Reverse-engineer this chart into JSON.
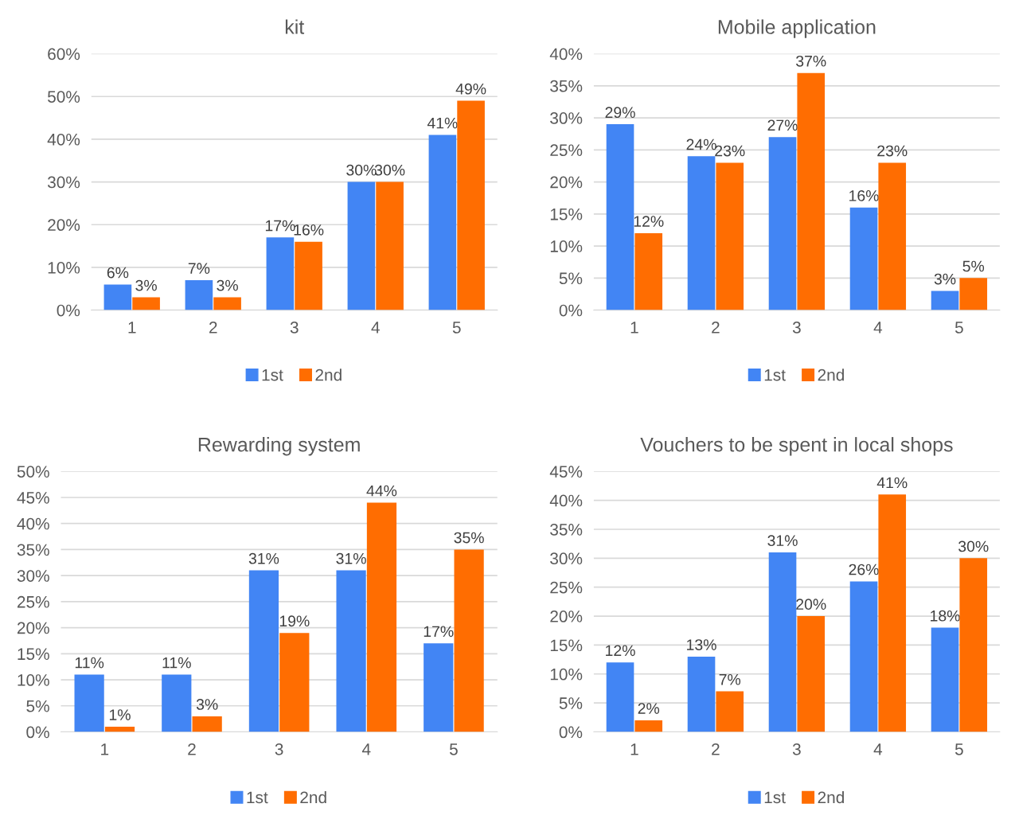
{
  "chart_data": [
    {
      "type": "bar",
      "title": "kit",
      "categories": [
        "1",
        "2",
        "3",
        "4",
        "5"
      ],
      "series": [
        {
          "name": "1st",
          "color": "#4285f4",
          "values": [
            6,
            7,
            17,
            30,
            41
          ],
          "value_labels": [
            "6%",
            "7%",
            "17%",
            "30%",
            "41%"
          ]
        },
        {
          "name": "2nd",
          "color": "#ff6d01",
          "values": [
            3,
            3,
            16,
            30,
            49
          ],
          "value_labels": [
            "3%",
            "3%",
            "16%",
            "30%",
            "49%"
          ]
        }
      ],
      "ylim": [
        0,
        60
      ],
      "yticks": [
        {
          "value": 0,
          "label": "0%"
        },
        {
          "value": 10,
          "label": "10%"
        },
        {
          "value": 20,
          "label": "20%"
        },
        {
          "value": 30,
          "label": "30%"
        },
        {
          "value": 40,
          "label": "40%"
        },
        {
          "value": 50,
          "label": "50%"
        },
        {
          "value": 60,
          "label": "60%"
        }
      ],
      "grid": "y",
      "legend": "bottom"
    },
    {
      "type": "bar",
      "title": "Mobile application",
      "categories": [
        "1",
        "2",
        "3",
        "4",
        "5"
      ],
      "series": [
        {
          "name": "1st",
          "color": "#4285f4",
          "values": [
            29,
            24,
            27,
            16,
            3
          ],
          "value_labels": [
            "29%",
            "24%",
            "27%",
            "16%",
            "3%"
          ]
        },
        {
          "name": "2nd",
          "color": "#ff6d01",
          "values": [
            12,
            23,
            37,
            23,
            5
          ],
          "value_labels": [
            "12%",
            "23%",
            "37%",
            "23%",
            "5%"
          ]
        }
      ],
      "ylim": [
        0,
        40
      ],
      "yticks": [
        {
          "value": 0,
          "label": "0%"
        },
        {
          "value": 5,
          "label": "5%"
        },
        {
          "value": 10,
          "label": "10%"
        },
        {
          "value": 15,
          "label": "15%"
        },
        {
          "value": 20,
          "label": "20%"
        },
        {
          "value": 25,
          "label": "25%"
        },
        {
          "value": 30,
          "label": "30%"
        },
        {
          "value": 35,
          "label": "35%"
        },
        {
          "value": 40,
          "label": "40%"
        }
      ],
      "grid": "y",
      "legend": "bottom"
    },
    {
      "type": "bar",
      "title": "Rewarding system",
      "categories": [
        "1",
        "2",
        "3",
        "4",
        "5"
      ],
      "series": [
        {
          "name": "1st",
          "color": "#4285f4",
          "values": [
            11,
            11,
            31,
            31,
            17
          ],
          "value_labels": [
            "11%",
            "11%",
            "31%",
            "31%",
            "17%"
          ]
        },
        {
          "name": "2nd",
          "color": "#ff6d01",
          "values": [
            1,
            3,
            19,
            44,
            35
          ],
          "value_labels": [
            "1%",
            "3%",
            "19%",
            "44%",
            "35%"
          ]
        }
      ],
      "ylim": [
        0,
        50
      ],
      "yticks": [
        {
          "value": 0,
          "label": "0%"
        },
        {
          "value": 5,
          "label": "5%"
        },
        {
          "value": 10,
          "label": "10%"
        },
        {
          "value": 15,
          "label": "15%"
        },
        {
          "value": 20,
          "label": "20%"
        },
        {
          "value": 25,
          "label": "25%"
        },
        {
          "value": 30,
          "label": "30%"
        },
        {
          "value": 35,
          "label": "35%"
        },
        {
          "value": 40,
          "label": "40%"
        },
        {
          "value": 45,
          "label": "45%"
        },
        {
          "value": 50,
          "label": "50%"
        }
      ],
      "grid": "y",
      "legend": "bottom"
    },
    {
      "type": "bar",
      "title": "Vouchers to be spent in local shops",
      "categories": [
        "1",
        "2",
        "3",
        "4",
        "5"
      ],
      "series": [
        {
          "name": "1st",
          "color": "#4285f4",
          "values": [
            12,
            13,
            31,
            26,
            18
          ],
          "value_labels": [
            "12%",
            "13%",
            "31%",
            "26%",
            "18%"
          ]
        },
        {
          "name": "2nd",
          "color": "#ff6d01",
          "values": [
            2,
            7,
            20,
            41,
            30
          ],
          "value_labels": [
            "2%",
            "7%",
            "20%",
            "41%",
            "30%"
          ]
        }
      ],
      "ylim": [
        0,
        45
      ],
      "yticks": [
        {
          "value": 0,
          "label": "0%"
        },
        {
          "value": 5,
          "label": "5%"
        },
        {
          "value": 10,
          "label": "10%"
        },
        {
          "value": 15,
          "label": "15%"
        },
        {
          "value": 20,
          "label": "20%"
        },
        {
          "value": 25,
          "label": "25%"
        },
        {
          "value": 30,
          "label": "30%"
        },
        {
          "value": 35,
          "label": "35%"
        },
        {
          "value": 40,
          "label": "40%"
        },
        {
          "value": 45,
          "label": "45%"
        }
      ],
      "grid": "y",
      "legend": "bottom"
    }
  ]
}
